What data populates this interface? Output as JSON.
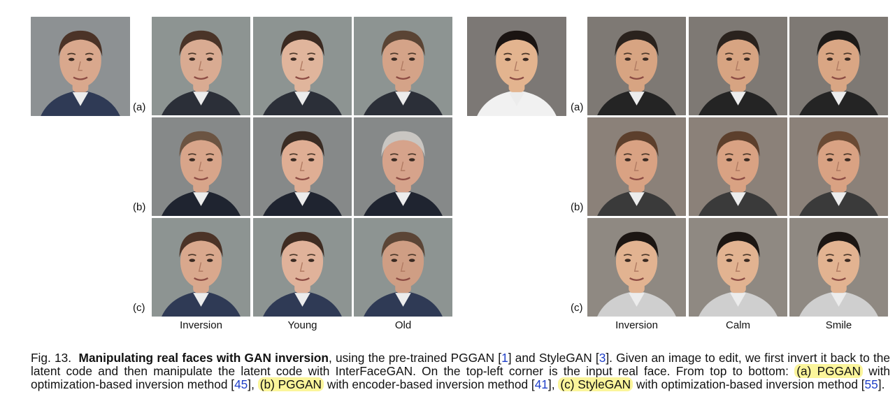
{
  "row_labels": {
    "a": "(a)",
    "b": "(b)",
    "c": "(c)"
  },
  "left_panel": {
    "columns": [
      "Inversion",
      "Young",
      "Old"
    ]
  },
  "right_panel": {
    "columns": [
      "Inversion",
      "Calm",
      "Smile"
    ]
  },
  "colors": {
    "reference_link": "#1f3fc7",
    "highlight": "#fbf59b"
  },
  "caption": {
    "fig": "Fig. 13.",
    "title": "Manipulating real faces with GAN inversion",
    "t1": ", using the pre-trained PGGAN [",
    "r1": "1",
    "t2": "] and StyleGAN [",
    "r2": "3",
    "t3": "]. Given an image to edit, we first invert it back to the latent code and then manipulate the latent code with InterFaceGAN. On the top-left corner is the input real face. From top to bottom:",
    "h1": "(a) PGGAN",
    "t4": " with optimization-based inversion method [",
    "r3": "45",
    "t5": "], ",
    "h2": "(b) PGGAN",
    "t6": " with encoder-based inversion method [",
    "r4": "41",
    "t7": "], ",
    "h3": "(c) StyleGAN",
    "t8": " with optimization-based inversion method [",
    "r5": "55",
    "t9": "]."
  }
}
